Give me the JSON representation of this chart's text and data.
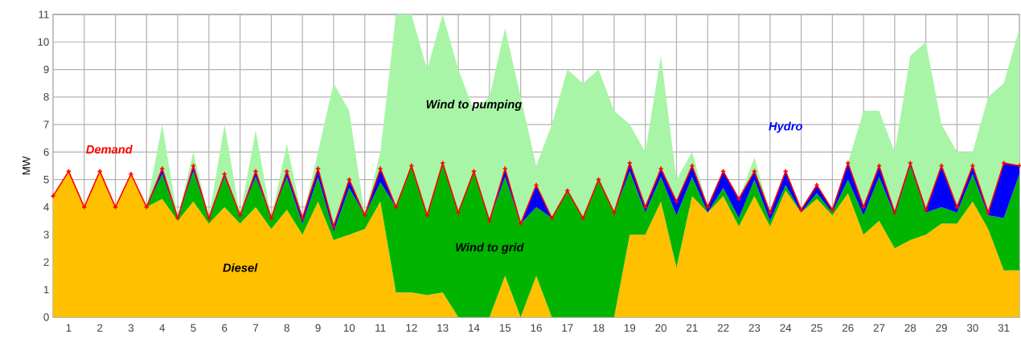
{
  "chart_data": {
    "type": "area",
    "stacked": true,
    "ylabel": "MW",
    "xlim": [
      0.5,
      31.5
    ],
    "ylim": [
      0,
      11
    ],
    "yticks": [
      0,
      1,
      2,
      3,
      4,
      5,
      6,
      7,
      8,
      9,
      10,
      11
    ],
    "xticks": [
      1,
      2,
      3,
      4,
      5,
      6,
      7,
      8,
      9,
      10,
      11,
      12,
      13,
      14,
      15,
      16,
      17,
      18,
      19,
      20,
      21,
      22,
      23,
      24,
      25,
      26,
      27,
      28,
      29,
      30,
      31,
      {
        "value": 1.5,
        "label": null
      },
      {
        "value": 2.5,
        "label": null
      },
      {
        "value": 3.5,
        "label": null
      },
      {
        "value": 4.5,
        "label": null
      },
      {
        "value": 5.5,
        "label": null
      },
      {
        "value": 6.5,
        "label": null
      },
      {
        "value": 7.5,
        "label": null
      },
      {
        "value": 8.5,
        "label": null
      },
      {
        "value": 9.5,
        "label": null
      },
      {
        "value": 10.5,
        "label": null
      },
      {
        "value": 11.5,
        "label": null
      },
      {
        "value": 12.5,
        "label": null
      },
      {
        "value": 13.5,
        "label": null
      },
      {
        "value": 14.5,
        "label": null
      },
      {
        "value": 15.5,
        "label": null
      },
      {
        "value": 16.5,
        "label": null
      },
      {
        "value": 17.5,
        "label": null
      },
      {
        "value": 18.5,
        "label": null
      },
      {
        "value": 19.5,
        "label": null
      },
      {
        "value": 20.5,
        "label": null
      },
      {
        "value": 21.5,
        "label": null
      },
      {
        "value": 22.5,
        "label": null
      },
      {
        "value": 23.5,
        "label": null
      },
      {
        "value": 24.5,
        "label": null
      },
      {
        "value": 25.5,
        "label": null
      },
      {
        "value": 26.5,
        "label": null
      },
      {
        "value": 27.5,
        "label": null
      },
      {
        "value": 28.5,
        "label": null
      },
      {
        "value": 29.5,
        "label": null
      },
      {
        "value": 30.5,
        "label": null
      }
    ],
    "grid": true,
    "x": [
      0.5,
      1.0,
      1.5,
      2.0,
      2.5,
      3.0,
      3.5,
      4.0,
      4.5,
      5.0,
      5.5,
      6.0,
      6.5,
      7.0,
      7.5,
      8.0,
      8.5,
      9.0,
      9.5,
      10.0,
      10.5,
      11.0,
      11.5,
      12.0,
      12.5,
      13.0,
      13.5,
      14.0,
      14.5,
      15.0,
      15.5,
      16.0,
      16.5,
      17.0,
      17.5,
      18.0,
      18.5,
      19.0,
      19.5,
      20.0,
      20.5,
      21.0,
      21.5,
      22.0,
      22.5,
      23.0,
      23.5,
      24.0,
      24.5,
      25.0,
      25.5,
      26.0,
      26.5,
      27.0,
      27.5,
      28.0,
      28.5,
      29.0,
      29.5,
      30.0,
      30.5,
      31.0,
      31.5
    ],
    "series": [
      {
        "name": "Diesel",
        "color": "#ffc000",
        "values": [
          4.4,
          5.3,
          4.0,
          5.3,
          4.0,
          5.2,
          4.0,
          4.3,
          3.5,
          4.2,
          3.4,
          4.0,
          3.4,
          4.0,
          3.2,
          3.9,
          3.0,
          4.2,
          2.8,
          3.0,
          3.2,
          4.2,
          0.9,
          0.9,
          0.8,
          0.9,
          0,
          0,
          0,
          1.5,
          0,
          1.5,
          0,
          0,
          0,
          0,
          0,
          3.0,
          3.0,
          4.2,
          1.8,
          4.4,
          3.8,
          4.4,
          3.3,
          4.4,
          3.3,
          4.6,
          3.8,
          4.3,
          3.7,
          4.5,
          3.0,
          3.5,
          2.5,
          2.8,
          3.0,
          3.4,
          3.4,
          4.2,
          3.2,
          1.7,
          1.7
        ]
      },
      {
        "name": "Wind to grid",
        "color": "#00b400",
        "values": [
          0,
          0,
          0,
          0,
          0,
          0,
          0,
          0.9,
          0.1,
          1.1,
          0.2,
          1.1,
          0.3,
          1.1,
          0.4,
          1.2,
          0.4,
          0.9,
          0.3,
          1.7,
          0.5,
          0.7,
          3.1,
          4.6,
          2.9,
          4.7,
          3.8,
          5.3,
          3.5,
          3.6,
          3.4,
          2.5,
          3.6,
          4.6,
          3.6,
          5.0,
          3.8,
          2.3,
          0.8,
          0.9,
          1.9,
          0.7,
          0,
          0.3,
          0.3,
          0.6,
          0.2,
          0.2,
          0,
          0.2,
          0.1,
          0.5,
          0.7,
          1.6,
          1.2,
          2.7,
          0.8,
          0.6,
          0.4,
          1.0,
          0.5,
          1.9,
          3.5
        ]
      },
      {
        "name": "Hydro",
        "color": "#0000ff",
        "values": [
          0,
          0,
          0,
          0,
          0,
          0,
          0,
          0.2,
          0,
          0.2,
          0,
          0.1,
          0,
          0.2,
          0,
          0.2,
          0.2,
          0.3,
          0.2,
          0.3,
          0,
          0.5,
          0,
          0,
          0,
          0,
          0,
          0,
          0,
          0.3,
          0,
          0.8,
          0,
          0,
          0,
          0,
          0,
          0.3,
          0.2,
          0.3,
          0.5,
          0.4,
          0.2,
          0.6,
          0.7,
          0.3,
          0.3,
          0.5,
          0.1,
          0.3,
          0.1,
          0.6,
          0.3,
          0.4,
          0.1,
          0.1,
          0.1,
          1.5,
          0.2,
          0.3,
          0.1,
          2.0,
          0.3
        ]
      },
      {
        "name": "Wind to pumping",
        "color": "#a8f5a8",
        "values": [
          0,
          0,
          0,
          0,
          0,
          0,
          0,
          1.6,
          0,
          0.5,
          0,
          1.8,
          0,
          1.5,
          0,
          1.0,
          0,
          0.6,
          5.2,
          2.5,
          0,
          0.6,
          7.0,
          5.5,
          5.3,
          5.4,
          5.2,
          2.2,
          4.5,
          5.1,
          4.6,
          0.7,
          3.4,
          4.4,
          4.9,
          4.0,
          3.7,
          1.4,
          2.0,
          4.1,
          0.8,
          0.5,
          0,
          0,
          0,
          0.5,
          0,
          0,
          0,
          0,
          0,
          0,
          3.5,
          2.0,
          2.2,
          3.9,
          6.1,
          1.5,
          2.0,
          0.5,
          4.2,
          2.9,
          5.0
        ]
      },
      {
        "name": "Demand",
        "type": "line",
        "color": "#ff0000",
        "marker": "cross",
        "line_style": "solid",
        "values": [
          4.4,
          5.3,
          4.0,
          5.3,
          4.0,
          5.2,
          4.0,
          5.4,
          3.6,
          5.5,
          3.6,
          5.2,
          3.7,
          5.3,
          3.6,
          5.3,
          3.6,
          5.4,
          3.3,
          5.0,
          3.7,
          5.4,
          4.0,
          5.5,
          3.7,
          5.6,
          3.8,
          5.3,
          3.5,
          5.4,
          3.4,
          4.8,
          3.6,
          4.6,
          3.6,
          5.0,
          3.8,
          5.6,
          4.0,
          5.4,
          4.2,
          5.5,
          4.0,
          5.3,
          4.3,
          5.3,
          3.8,
          5.3,
          3.9,
          4.8,
          3.9,
          5.6,
          4.0,
          5.5,
          3.8,
          5.6,
          3.9,
          5.5,
          4.0,
          5.5,
          3.8,
          5.6,
          5.5
        ]
      }
    ]
  }
}
